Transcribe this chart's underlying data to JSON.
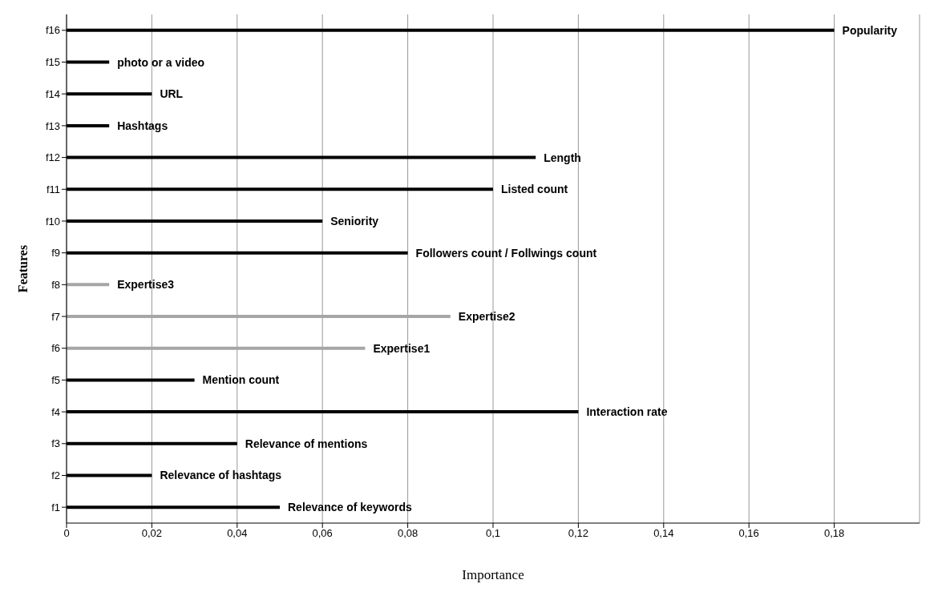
{
  "chart_data": {
    "type": "bar",
    "orientation": "horizontal",
    "xlabel": "Importance",
    "ylabel": "Features",
    "categories": [
      "f16",
      "f15",
      "f14",
      "f13",
      "f12",
      "f11",
      "f10",
      "f9",
      "f8",
      "f7",
      "f6",
      "f5",
      "f4",
      "f3",
      "f2",
      "f1"
    ],
    "values": [
      0.18,
      0.01,
      0.02,
      0.01,
      0.11,
      0.1,
      0.06,
      0.08,
      0.01,
      0.09,
      0.07,
      0.03,
      0.12,
      0.04,
      0.02,
      0.05
    ],
    "colors": [
      "#000000",
      "#000000",
      "#000000",
      "#000000",
      "#000000",
      "#000000",
      "#000000",
      "#000000",
      "#a6a6a6",
      "#a6a6a6",
      "#a6a6a6",
      "#000000",
      "#000000",
      "#000000",
      "#000000",
      "#000000"
    ],
    "xlim": [
      0,
      0.2
    ],
    "xticks": [
      0,
      {
        "value": 0.02,
        "label": "0,02"
      },
      {
        "value": 0.04,
        "label": "0,04"
      },
      {
        "value": 0.06,
        "label": "0,06"
      },
      {
        "value": 0.08,
        "label": "0,08"
      },
      {
        "value": 0.1,
        "label": "0,1"
      },
      {
        "value": 0.12,
        "label": "0,12"
      },
      {
        "value": 0.14,
        "label": "0,14"
      },
      {
        "value": 0.16,
        "label": "0,16"
      },
      {
        "value": 0.18,
        "label": "0,18"
      }
    ],
    "grid": "x",
    "legend": false,
    "annotations": [
      {
        "text": "Popularity",
        "x": 0.18,
        "y": "f16"
      },
      {
        "text": "photo or a video",
        "x": 0.01,
        "y": "f15"
      },
      {
        "text": "URL",
        "x": 0.02,
        "y": "f14"
      },
      {
        "text": "Hashtags",
        "x": 0.01,
        "y": "f13"
      },
      {
        "text": "Length",
        "x": 0.11,
        "y": "f12"
      },
      {
        "text": "Listed count",
        "x": 0.1,
        "y": "f11"
      },
      {
        "text": "Seniority",
        "x": 0.06,
        "y": "f10"
      },
      {
        "text": "Followers count / Follwings count",
        "x": 0.08,
        "y": "f9"
      },
      {
        "text": "Expertise3",
        "x": 0.01,
        "y": "f8"
      },
      {
        "text": "Expertise2",
        "x": 0.09,
        "y": "f7"
      },
      {
        "text": "Expertise1",
        "x": 0.07,
        "y": "f6"
      },
      {
        "text": "Mention count",
        "x": 0.03,
        "y": "f5"
      },
      {
        "text": "Interaction rate",
        "x": 0.12,
        "y": "f4"
      },
      {
        "text": "Relevance of mentions",
        "x": 0.04,
        "y": "f3"
      },
      {
        "text": "Relevance of hashtags",
        "x": 0.02,
        "y": "f2"
      },
      {
        "text": "Relevance of keywords",
        "x": 0.05,
        "y": "f1"
      }
    ]
  }
}
